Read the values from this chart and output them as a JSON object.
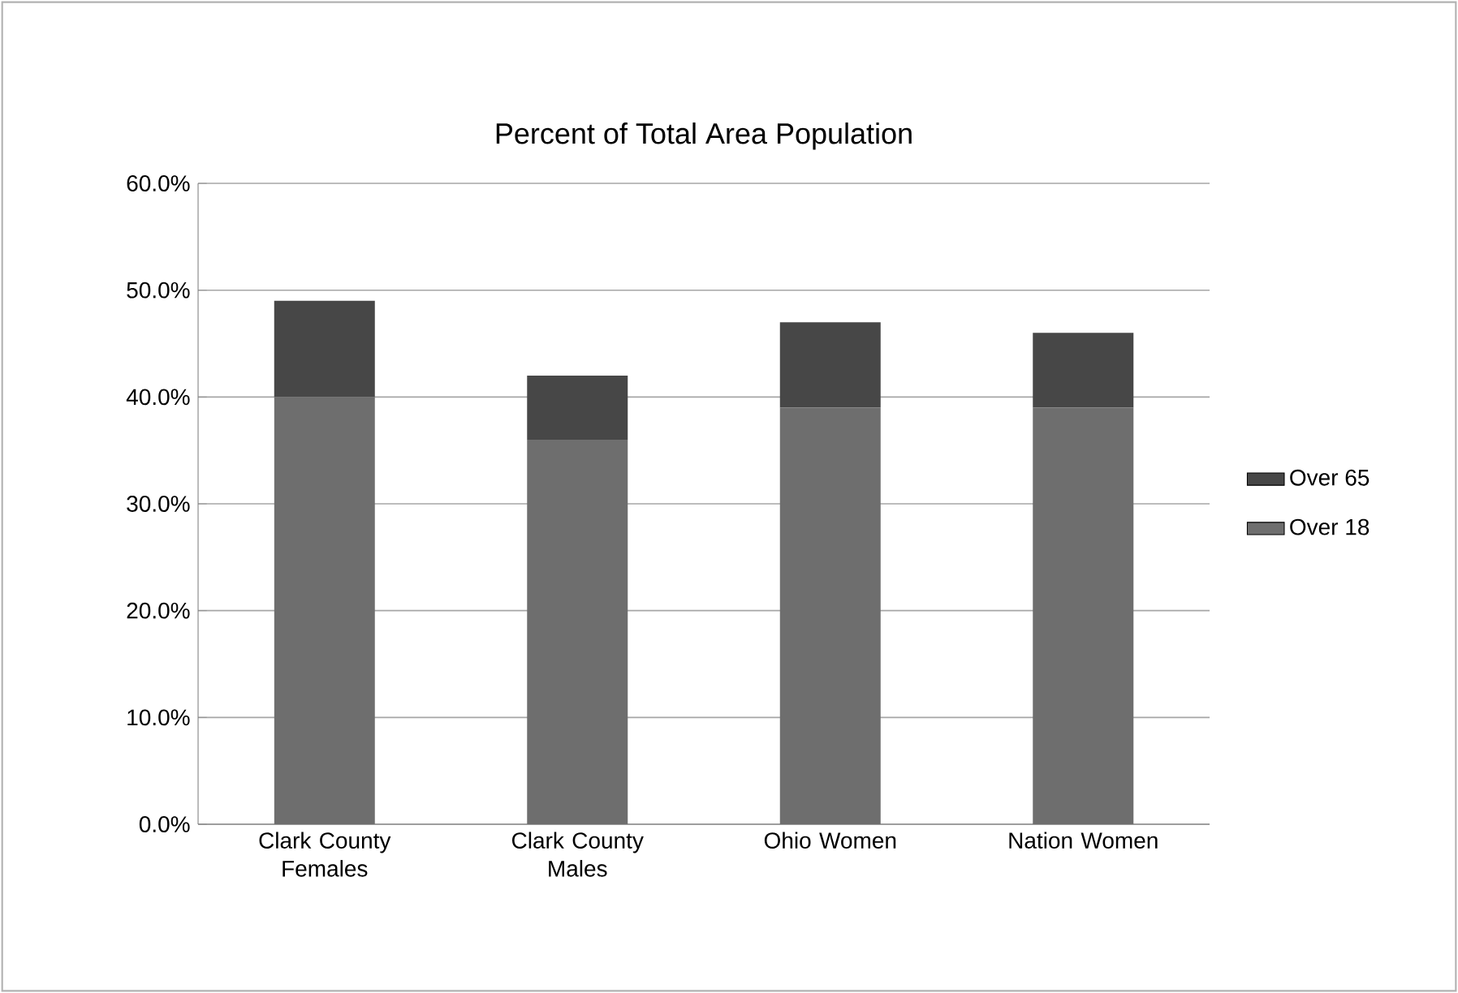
{
  "chart_data": {
    "type": "bar",
    "title": "Percent of Total Area Population",
    "stacked": true,
    "categories": [
      "Clark County Females",
      "Clark County Males",
      "Ohio Women",
      "Nation Women"
    ],
    "series": [
      {
        "name": "Over 18",
        "color": "#6e6e6e",
        "values": [
          40,
          36,
          39,
          39
        ]
      },
      {
        "name": "Over 65",
        "color": "#474747",
        "values": [
          9,
          6,
          8,
          7
        ]
      }
    ],
    "ylim": [
      0,
      60
    ],
    "yticks": [
      {
        "value": 0,
        "label": "0.0%"
      },
      {
        "value": 10,
        "label": "10.0%"
      },
      {
        "value": 20,
        "label": "20.0%"
      },
      {
        "value": 30,
        "label": "30.0%"
      },
      {
        "value": 40,
        "label": "40.0%"
      },
      {
        "value": 50,
        "label": "50.0%"
      },
      {
        "value": 60,
        "label": "60.0%"
      }
    ],
    "grid": "y",
    "legend": "right"
  }
}
